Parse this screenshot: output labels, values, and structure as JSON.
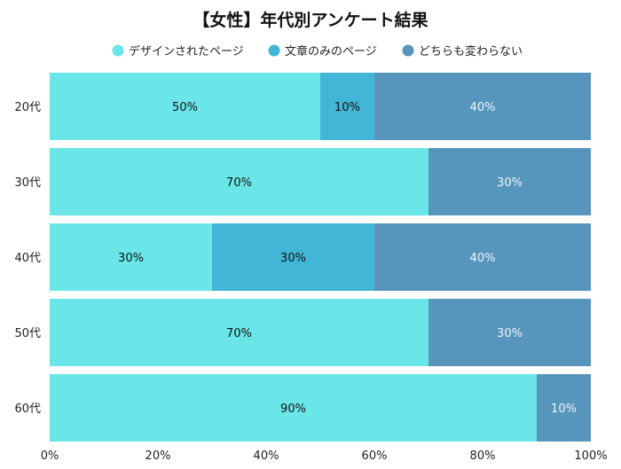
{
  "chart_data": {
    "type": "bar",
    "orientation": "horizontal",
    "stacked": true,
    "title": "【女性】年代別アンケート結果",
    "categories": [
      "20代",
      "30代",
      "40代",
      "50代",
      "60代"
    ],
    "series": [
      {
        "name": "デザインされたページ",
        "color": "#6ae6e8",
        "values": [
          50,
          70,
          30,
          70,
          90
        ]
      },
      {
        "name": "文章のみのページ",
        "color": "#41b6d6",
        "values": [
          10,
          0,
          30,
          0,
          0
        ]
      },
      {
        "name": "どちらも変わらない",
        "color": "#5795bd",
        "values": [
          40,
          30,
          40,
          30,
          10
        ]
      }
    ],
    "xlim": [
      0,
      100
    ],
    "xticks": [
      "0%",
      "20%",
      "40%",
      "60%",
      "80%",
      "100%"
    ],
    "legend": "top",
    "grid": false,
    "data_label_format": "{v}%"
  }
}
